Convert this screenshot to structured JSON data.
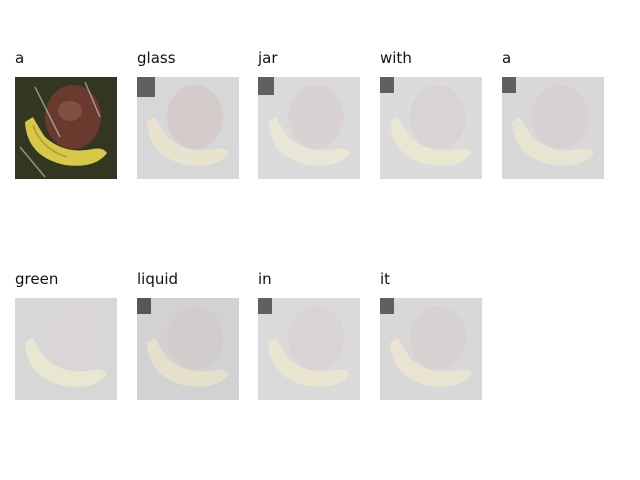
{
  "caption_words": [
    "a",
    "glass",
    "jar",
    "with",
    "a",
    "green",
    "liquid",
    "in",
    "it"
  ],
  "image": {
    "first_panel": "original-photo",
    "other_panels": "attention-overlay",
    "subject": "banana-and-dark-fruit-in-plastic-bag"
  },
  "colors": {
    "page_background": "#ffffff",
    "word_text": "#111111",
    "banana": "#d8c84a",
    "fruit": "#6a3a2e",
    "overlay_tint": "#e6e6e6"
  }
}
